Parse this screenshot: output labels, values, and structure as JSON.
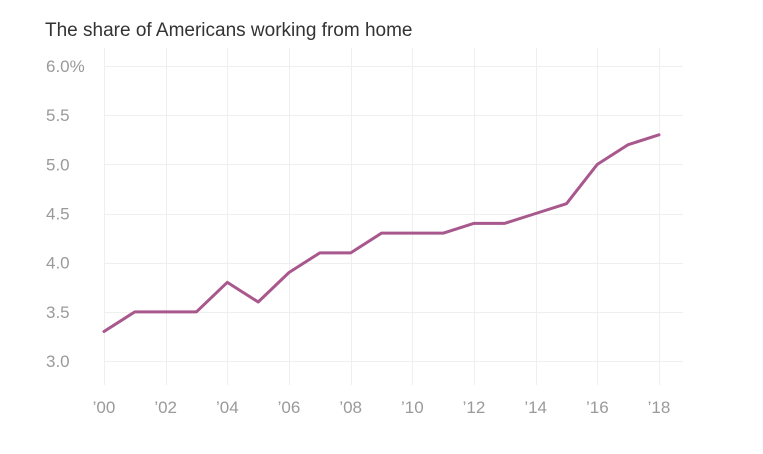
{
  "chart_data": {
    "type": "line",
    "title": "The share of Americans working from home",
    "xlabel": "",
    "ylabel": "",
    "x": [
      2000,
      2001,
      2002,
      2003,
      2004,
      2005,
      2006,
      2007,
      2008,
      2009,
      2010,
      2011,
      2012,
      2013,
      2014,
      2015,
      2016,
      2017,
      2018
    ],
    "series": [
      {
        "values": [
          3.3,
          3.5,
          3.5,
          3.5,
          3.8,
          3.6,
          3.9,
          4.1,
          4.1,
          4.3,
          4.3,
          4.3,
          4.4,
          4.4,
          4.5,
          4.6,
          5.0,
          5.2,
          5.3
        ]
      }
    ],
    "ylim": [
      3.0,
      6.0
    ],
    "xlim": [
      2000,
      2018
    ],
    "y_ticks": [
      {
        "value": 3.0,
        "label": "3.0"
      },
      {
        "value": 3.5,
        "label": "3.5"
      },
      {
        "value": 4.0,
        "label": "4.0"
      },
      {
        "value": 4.5,
        "label": "4.5"
      },
      {
        "value": 5.0,
        "label": "5.0"
      },
      {
        "value": 5.5,
        "label": "5.5"
      },
      {
        "value": 6.0,
        "label": "6.0%"
      }
    ],
    "x_ticks": [
      {
        "value": 2000,
        "label": "’00"
      },
      {
        "value": 2002,
        "label": "’02"
      },
      {
        "value": 2004,
        "label": "’04"
      },
      {
        "value": 2006,
        "label": "’06"
      },
      {
        "value": 2008,
        "label": "’08"
      },
      {
        "value": 2010,
        "label": "’10"
      },
      {
        "value": 2012,
        "label": "’12"
      },
      {
        "value": 2014,
        "label": "’14"
      },
      {
        "value": 2016,
        "label": "’16"
      },
      {
        "value": 2018,
        "label": "’18"
      }
    ],
    "grid": true,
    "legend": "none",
    "line_color": "#a8588c",
    "grid_color": "#efefef",
    "tick_color": "#9a9a9a"
  }
}
